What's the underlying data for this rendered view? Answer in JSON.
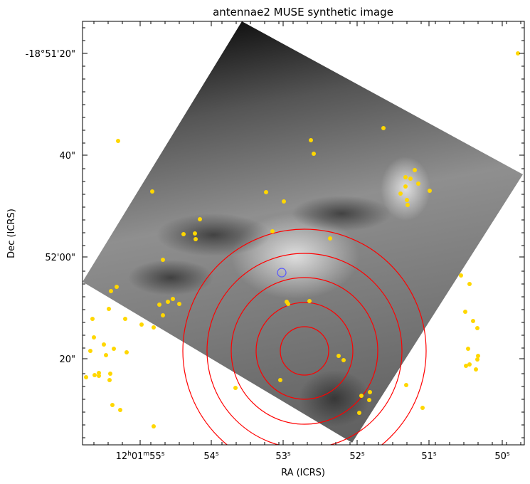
{
  "figure": {
    "title": "antennae2 MUSE synthetic image",
    "xlabel": "RA (ICRS)",
    "ylabel": "Dec (ICRS)",
    "colormap": "grayscale",
    "marker_color": "#ffd700",
    "circle_color": "#ff0000",
    "target_circle_color": "#5555ff",
    "x_ticks": [
      {
        "pre": "12",
        "s1": "h",
        "mid": "01",
        "s2": "m",
        "post": "55",
        "s3": "s"
      },
      {
        "pre": "54",
        "s1": "s"
      },
      {
        "pre": "53",
        "s1": "s"
      },
      {
        "pre": "52",
        "s1": "s"
      },
      {
        "pre": "51",
        "s1": "s"
      },
      {
        "pre": "50",
        "s1": "s"
      }
    ],
    "y_ticks": [
      "-18°51'20\"",
      "40\"",
      "52'00\"",
      "20\""
    ]
  },
  "chart_data": {
    "type": "scatter",
    "title": "antennae2 MUSE synthetic image",
    "xlabel": "RA (ICRS)",
    "ylabel": "Dec (ICRS)",
    "x_ticks": [
      "12h01m55s",
      "54s",
      "53s",
      "52s",
      "51s",
      "50s"
    ],
    "y_ticks": [
      "-18°51'20\"",
      "40\"",
      "52'00\"",
      "20\""
    ],
    "grid": false,
    "note_layers": [
      "grayscale image",
      "yellow point sources",
      "red concentric circles",
      "blue target circle"
    ]
  }
}
